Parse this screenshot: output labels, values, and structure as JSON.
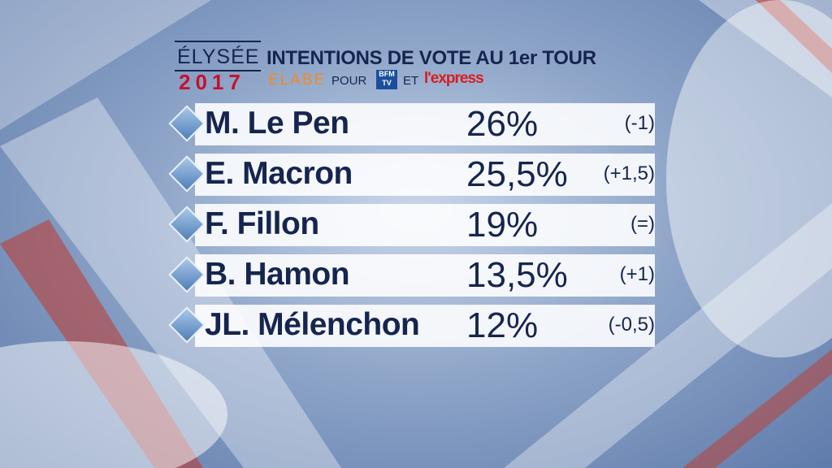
{
  "header": {
    "brand_top": "ÉLYSÉE",
    "brand_year": "2017",
    "title": "INTENTIONS DE VOTE AU 1er TOUR",
    "pollster": "ELABE",
    "for": "POUR",
    "partner1_line1": "BFM",
    "partner1_line2": "TV",
    "and": "ET",
    "partner2": "l'express"
  },
  "table": {
    "rows": [
      [
        "M. Le Pen",
        "26%",
        "(-1)"
      ],
      [
        "E. Macron",
        "25,5%",
        "(+1,5)"
      ],
      [
        "F. Fillon",
        "19%",
        "(=)"
      ],
      [
        "B. Hamon",
        "13,5%",
        "(+1)"
      ],
      [
        "JL. Mélenchon",
        "12%",
        "(-0,5)"
      ]
    ]
  }
}
